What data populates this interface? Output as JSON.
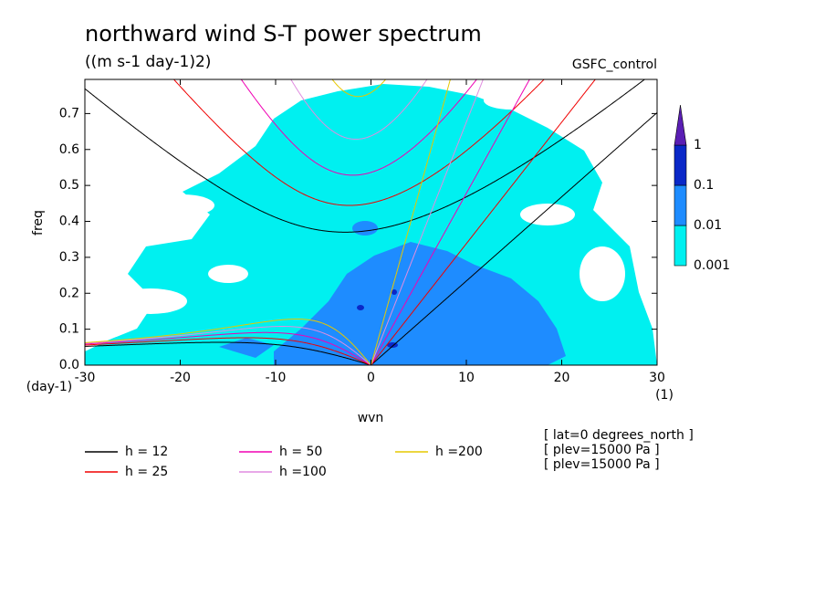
{
  "chart_data": {
    "type": "dispersion",
    "title": "northward wind S-T power spectrum",
    "subtitle": "((m s-1 day-1)2)",
    "run_label": "GSFC_control",
    "xlabel": "wvn",
    "ylabel": "freq",
    "y_unit": "(day-1)",
    "x_unit": "(1)",
    "xlim": [
      -30,
      30
    ],
    "ylim": [
      0,
      0.795
    ],
    "xticks": [
      -30,
      -20,
      -10,
      0,
      10,
      20,
      30
    ],
    "yticks": [
      {
        "value": 0,
        "label": "0.0"
      },
      0.1,
      0.2,
      0.3,
      0.4,
      0.5,
      0.6,
      0.7
    ],
    "colorbar": {
      "levels": [
        0.001,
        0.01,
        0.1,
        1
      ],
      "colors": [
        "#00f0f0",
        "#1e8cff",
        "#0a28c8",
        "#5a1eb4"
      ]
    },
    "series": [
      {
        "name": "h = 12",
        "h": 12,
        "color": "#000000"
      },
      {
        "name": "h = 25",
        "h": 25,
        "color": "#f00000"
      },
      {
        "name": "h = 50",
        "h": 50,
        "color": "#f000b4"
      },
      {
        "name": "h =100",
        "h": 100,
        "color": "#e08ce0"
      },
      {
        "name": "h =200",
        "h": 200,
        "color": "#e6c800"
      }
    ],
    "notes": [
      "[ lat=0 degrees_north ]",
      "[ plev=15000 Pa ]",
      "[ plev=15000 Pa ]"
    ]
  }
}
